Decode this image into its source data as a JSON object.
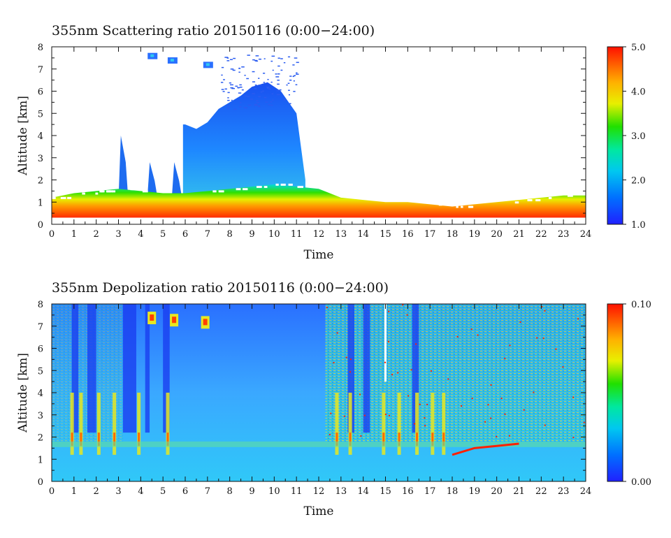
{
  "chart_data": [
    {
      "type": "heatmap",
      "title": "355nm Scattering ratio  20150116 (0:00−24:00)",
      "xlabel": "Time",
      "ylabel": "Altitude [km]",
      "xlim": [
        0,
        24
      ],
      "ylim": [
        0,
        8
      ],
      "x_ticks": [
        "0",
        "1",
        "2",
        "3",
        "4",
        "5",
        "6",
        "7",
        "8",
        "9",
        "10",
        "11",
        "12",
        "13",
        "14",
        "15",
        "16",
        "17",
        "18",
        "19",
        "20",
        "21",
        "22",
        "23",
        "24"
      ],
      "y_ticks": [
        "0",
        "1",
        "2",
        "3",
        "4",
        "5",
        "6",
        "7",
        "8"
      ],
      "colorbar": {
        "min": 1.0,
        "max": 5.0,
        "ticks": [
          "1.0",
          "2.0",
          "3.0",
          "4.0",
          "5.0"
        ]
      },
      "colors": {
        "low": "#2040ff",
        "mid": "#18e000",
        "high": "#ff2000"
      },
      "features": {
        "surface_layer": {
          "t": [
            0,
            1,
            2,
            3,
            4,
            5,
            6,
            7,
            8,
            9,
            10,
            11,
            12,
            13,
            14,
            15,
            16,
            17,
            18,
            19,
            20,
            21,
            22,
            23,
            24
          ],
          "top_km": [
            1.2,
            1.4,
            1.5,
            1.6,
            1.5,
            1.4,
            1.4,
            1.5,
            1.6,
            1.7,
            1.8,
            1.7,
            1.6,
            1.2,
            1.1,
            1.0,
            1.0,
            0.9,
            0.8,
            0.9,
            1.0,
            1.1,
            1.2,
            1.3,
            1.3
          ]
        },
        "cloud": {
          "t_start": 5.9,
          "t_end": 11.4,
          "top_km": [
            4.5,
            4.3,
            4.6,
            5.2,
            5.8,
            6.2,
            6.4,
            6.0,
            5.0
          ],
          "t_top": [
            6.0,
            6.5,
            7.0,
            7.5,
            8.5,
            9.0,
            9.7,
            10.3,
            11.0
          ]
        },
        "plumes": [
          [
            3.2,
            4.0
          ],
          [
            4.5,
            2.8
          ],
          [
            5.6,
            2.8
          ]
        ],
        "patches": [
          [
            4.5,
            7.6
          ],
          [
            5.4,
            7.4
          ],
          [
            7.0,
            7.2
          ]
        ]
      }
    },
    {
      "type": "heatmap",
      "title": "355nm Depolization ratio  20150116 (0:00−24:00)",
      "xlabel": "Time",
      "ylabel": "Altitude [km]",
      "xlim": [
        0,
        24
      ],
      "ylim": [
        0,
        8
      ],
      "x_ticks": [
        "0",
        "1",
        "2",
        "3",
        "4",
        "5",
        "6",
        "7",
        "8",
        "9",
        "10",
        "11",
        "12",
        "13",
        "14",
        "15",
        "16",
        "17",
        "18",
        "19",
        "20",
        "21",
        "22",
        "23",
        "24"
      ],
      "y_ticks": [
        "0",
        "1",
        "2",
        "3",
        "4",
        "5",
        "6",
        "7",
        "8"
      ],
      "colorbar": {
        "min": 0.0,
        "max": 0.1,
        "ticks": [
          "0.00",
          "0.10"
        ]
      },
      "colors": {
        "low": "#2040ff",
        "mid": "#18e000",
        "high": "#ff2000"
      },
      "features": {
        "background": "blue",
        "noisy_region_t": [
          12.3,
          24
        ],
        "boundary_layer_top_km": 1.8,
        "vertical_streaks_t": [
          0.9,
          1.3,
          2.1,
          2.8,
          3.9,
          5.2,
          12.8,
          13.4,
          14.9,
          15.6,
          16.4,
          17.1,
          17.6
        ],
        "patches": [
          [
            4.5,
            7.4
          ],
          [
            5.5,
            7.3
          ],
          [
            6.9,
            7.2
          ]
        ],
        "red_line": {
          "t": [
            18.0,
            19.0,
            20.0,
            21.0
          ],
          "km": [
            1.2,
            1.5,
            1.6,
            1.7
          ]
        }
      }
    }
  ]
}
